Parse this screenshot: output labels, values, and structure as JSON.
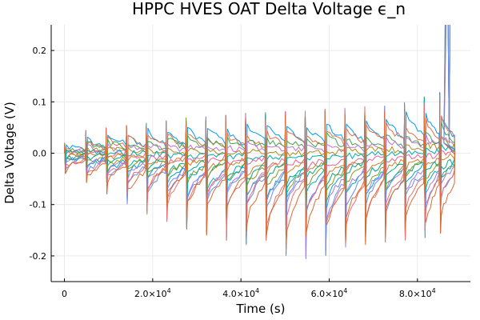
{
  "chart_data": {
    "type": "line",
    "title": "HPPC HVES OAT Delta Voltage ϵ_n",
    "xlabel": "Time (s)",
    "ylabel": "Delta Voltage (V)",
    "xlim": [
      -3000,
      92000
    ],
    "ylim": [
      -0.25,
      0.25
    ],
    "grid": true,
    "legend": "none",
    "x_ticks": [
      {
        "value": 0,
        "label": "0"
      },
      {
        "value": 20000,
        "mant": "2.0×10",
        "exp": "4"
      },
      {
        "value": 40000,
        "mant": "4.0×10",
        "exp": "4"
      },
      {
        "value": 60000,
        "mant": "6.0×10",
        "exp": "4"
      },
      {
        "value": 80000,
        "mant": "8.0×10",
        "exp": "4"
      }
    ],
    "y_ticks": [
      {
        "value": -0.2,
        "label": "-0.2"
      },
      {
        "value": -0.1,
        "label": "-0.1"
      },
      {
        "value": 0.0,
        "label": "0.0"
      },
      {
        "value": 0.1,
        "label": "0.1"
      },
      {
        "value": 0.2,
        "label": "0.2"
      }
    ],
    "pulse_times": [
      0,
      4800,
      9400,
      14000,
      18500,
      23000,
      27500,
      32000,
      36500,
      41000,
      45500,
      50000,
      54500,
      59000,
      63500,
      68000,
      72500,
      77000,
      81500,
      85000
    ],
    "upper_envelope": [
      0.02,
      0.045,
      0.05,
      0.055,
      0.06,
      0.065,
      0.07,
      0.072,
      0.075,
      0.078,
      0.08,
      0.082,
      0.085,
      0.087,
      0.09,
      0.092,
      0.095,
      0.1,
      0.11,
      0.12
    ],
    "lower_envelope": [
      -0.04,
      -0.06,
      -0.08,
      -0.1,
      -0.12,
      -0.14,
      -0.15,
      -0.16,
      -0.17,
      -0.18,
      -0.19,
      -0.2,
      -0.21,
      -0.2,
      -0.19,
      -0.18,
      -0.18,
      -0.17,
      -0.17,
      -0.16
    ],
    "series_colors": [
      "#009AFA",
      "#E36F47",
      "#3EA44E",
      "#C371D2",
      "#AC8E18",
      "#00AAAE",
      "#ED5E93",
      "#C68225",
      "#00A98D",
      "#8E971E",
      "#00A9CD",
      "#9B7FE9",
      "#618DF6",
      "#F16C6E",
      "#DC6B30"
    ],
    "series_count": 15
  }
}
